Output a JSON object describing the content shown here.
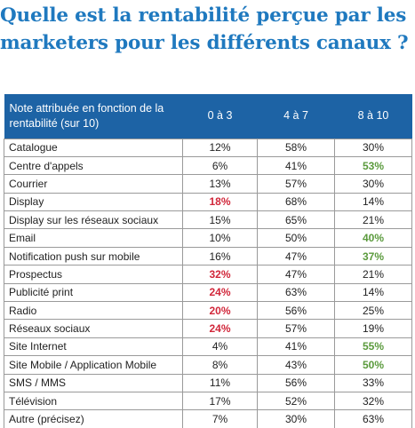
{
  "title": {
    "line1": "Quelle est la rentabilité perçue par les",
    "line2": "marketers pour les différents canaux ?"
  },
  "colors": {
    "title": "#1f79bf",
    "header_bg": "#1d63a5",
    "header_text": "#ffffff",
    "low_highlight": "#d1273a",
    "high_highlight": "#5a9a3c",
    "border": "#9a9a9a",
    "body_text": "#222222"
  },
  "chart_data": {
    "type": "table",
    "columns": [
      "Note attribuée en fonction de la rentabilité (sur 10)",
      "0 à 3",
      "4 à 7",
      "8 à 10"
    ],
    "rows": [
      {
        "label": "Catalogue",
        "values": [
          "12%",
          "58%",
          "30%"
        ],
        "highlight": [
          null,
          null,
          null
        ]
      },
      {
        "label": "Centre d'appels",
        "values": [
          "6%",
          "41%",
          "53%"
        ],
        "highlight": [
          null,
          null,
          "high"
        ]
      },
      {
        "label": "Courrier",
        "values": [
          "13%",
          "57%",
          "30%"
        ],
        "highlight": [
          null,
          null,
          null
        ]
      },
      {
        "label": "Display",
        "values": [
          "18%",
          "68%",
          "14%"
        ],
        "highlight": [
          "low",
          null,
          null
        ]
      },
      {
        "label": "Display sur les réseaux sociaux",
        "values": [
          "15%",
          "65%",
          "21%"
        ],
        "highlight": [
          null,
          null,
          null
        ]
      },
      {
        "label": "Email",
        "values": [
          "10%",
          "50%",
          "40%"
        ],
        "highlight": [
          null,
          null,
          "high"
        ]
      },
      {
        "label": "Notification push sur mobile",
        "values": [
          "16%",
          "47%",
          "37%"
        ],
        "highlight": [
          null,
          null,
          "high"
        ]
      },
      {
        "label": "Prospectus",
        "values": [
          "32%",
          "47%",
          "21%"
        ],
        "highlight": [
          "low",
          null,
          null
        ]
      },
      {
        "label": "Publicité print",
        "values": [
          "24%",
          "63%",
          "14%"
        ],
        "highlight": [
          "low",
          null,
          null
        ]
      },
      {
        "label": "Radio",
        "values": [
          "20%",
          "56%",
          "25%"
        ],
        "highlight": [
          "low",
          null,
          null
        ]
      },
      {
        "label": "Réseaux sociaux",
        "values": [
          "24%",
          "57%",
          "19%"
        ],
        "highlight": [
          "low",
          null,
          null
        ]
      },
      {
        "label": "Site Internet",
        "values": [
          "4%",
          "41%",
          "55%"
        ],
        "highlight": [
          null,
          null,
          "high"
        ]
      },
      {
        "label": "Site Mobile / Application Mobile",
        "values": [
          "8%",
          "43%",
          "50%"
        ],
        "highlight": [
          null,
          null,
          "high"
        ]
      },
      {
        "label": "SMS / MMS",
        "values": [
          "11%",
          "56%",
          "33%"
        ],
        "highlight": [
          null,
          null,
          null
        ]
      },
      {
        "label": "Télévision",
        "values": [
          "17%",
          "52%",
          "32%"
        ],
        "highlight": [
          null,
          null,
          null
        ]
      },
      {
        "label": "Autre (précisez)",
        "values": [
          "7%",
          "30%",
          "63%"
        ],
        "highlight": [
          null,
          null,
          null
        ]
      }
    ]
  }
}
